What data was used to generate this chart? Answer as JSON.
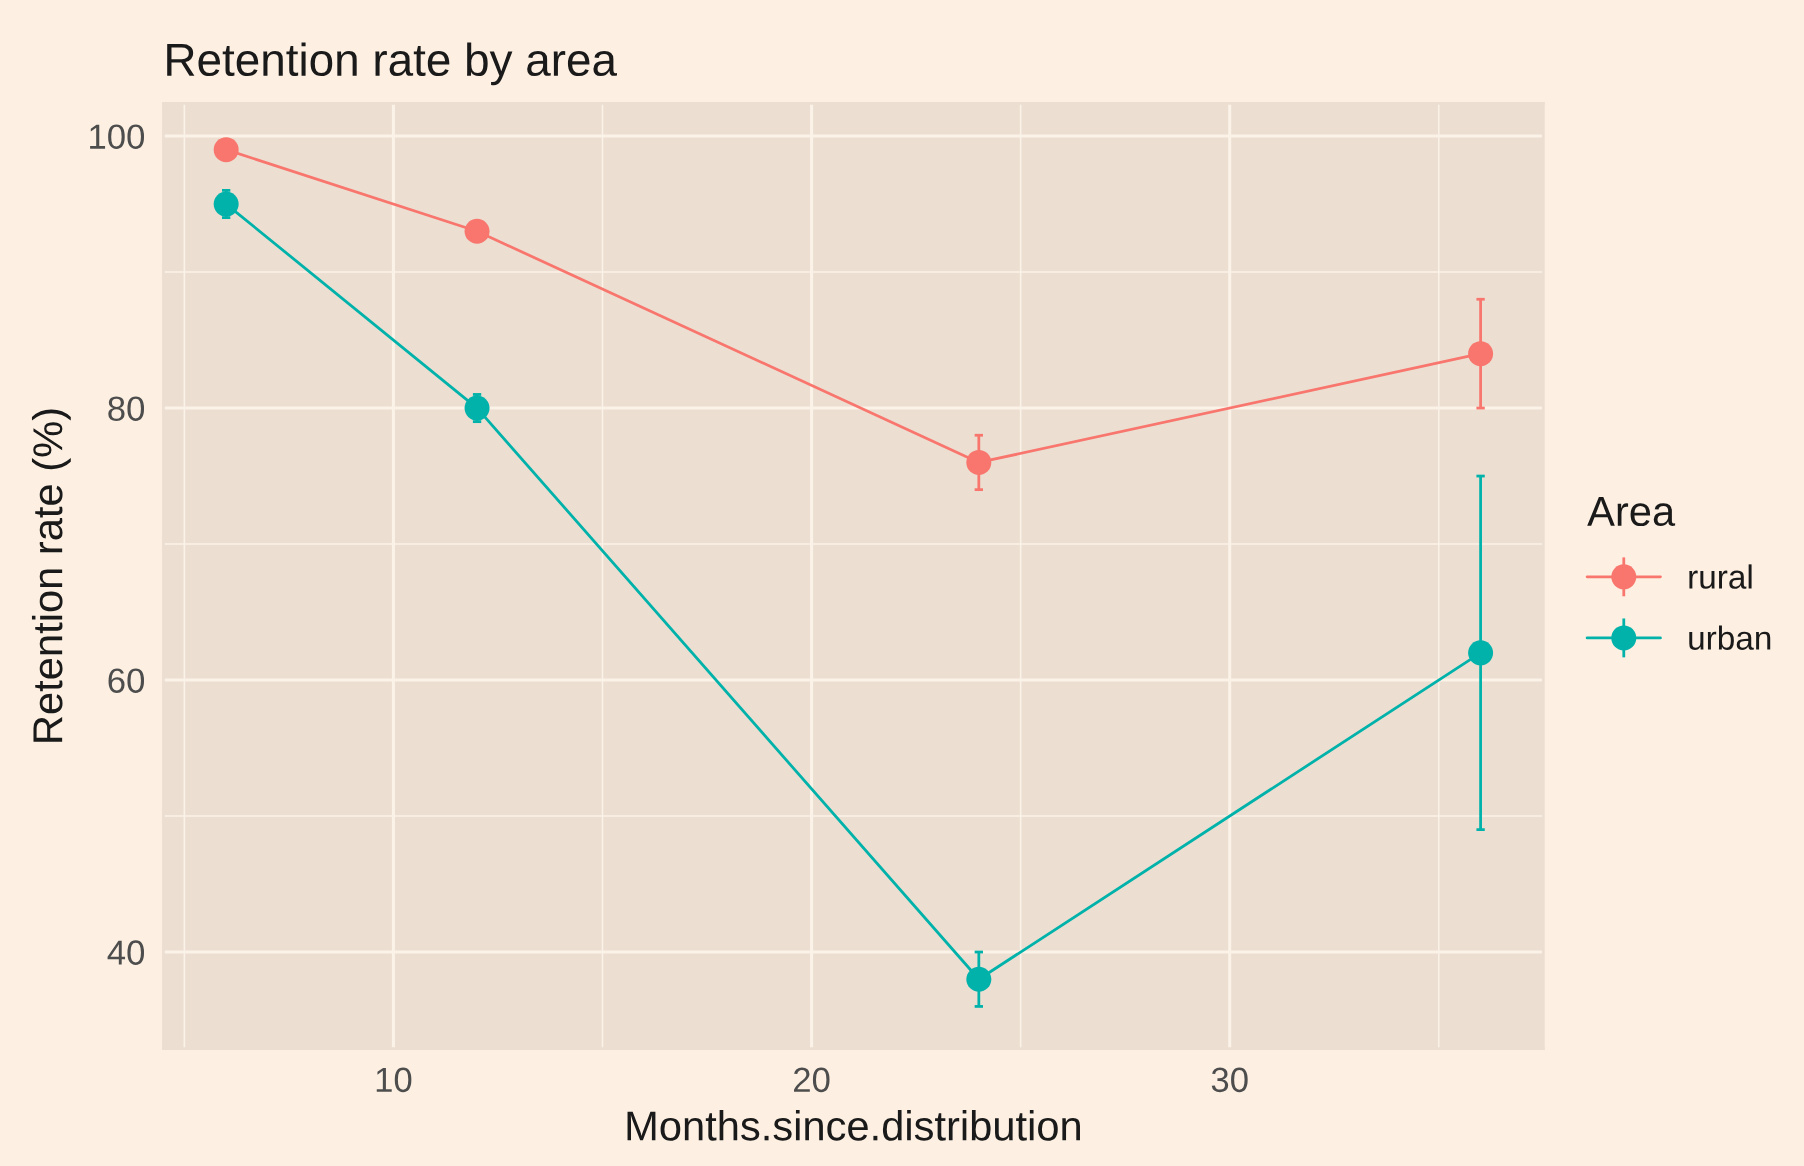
{
  "chart_data": {
    "type": "line",
    "title": "Retention rate by area",
    "xlabel": "Months.since.distribution",
    "ylabel": "Retention rate (%)",
    "legend_title": "Area",
    "x": [
      6,
      12,
      24,
      36
    ],
    "series": [
      {
        "name": "rural",
        "color": "#f8766d",
        "values": [
          99,
          93,
          76,
          84
        ],
        "errors": [
          null,
          null,
          2,
          4
        ]
      },
      {
        "name": "urban",
        "color": "#00b2aa",
        "values": [
          95,
          80,
          38,
          62
        ],
        "errors": [
          1,
          1,
          2,
          13
        ]
      }
    ],
    "xlim": [
      4.5,
      37.5
    ],
    "xticks": [
      10,
      20,
      30
    ],
    "ylim": [
      32.9,
      102.4
    ],
    "yticks": [
      40,
      60,
      80,
      100
    ],
    "grid": true,
    "legend": "right",
    "marker": "circle",
    "line_style": "solid"
  }
}
